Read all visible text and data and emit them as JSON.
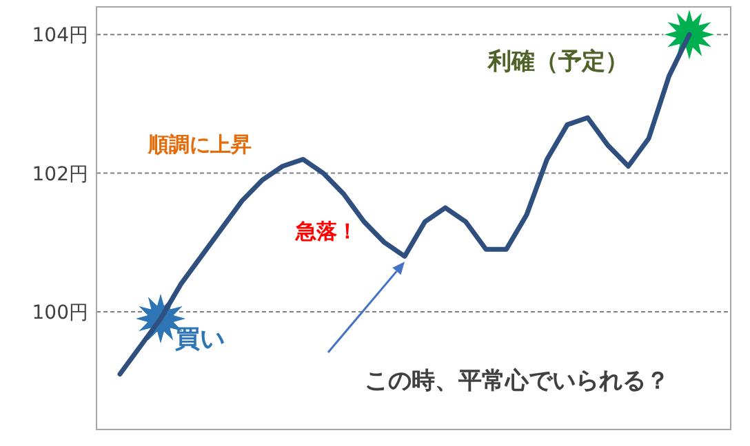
{
  "chart_data": {
    "type": "line",
    "categories": [
      null,
      null,
      null,
      null,
      null,
      null,
      null,
      null,
      null,
      null,
      null,
      null,
      null,
      null,
      null,
      null,
      null,
      null,
      null,
      null,
      null,
      null,
      null,
      null,
      null,
      null,
      null,
      null,
      null
    ],
    "series": [
      {
        "color": "#2f4f7f",
        "values": [
          99.1,
          99.5,
          99.9,
          100.4,
          100.8,
          101.2,
          101.6,
          101.9,
          102.1,
          102.2,
          102.0,
          101.7,
          101.3,
          101.0,
          100.8,
          101.3,
          101.5,
          101.3,
          100.9,
          100.9,
          101.4,
          102.2,
          102.7,
          102.8,
          102.4,
          102.1,
          102.5,
          103.4,
          104.0
        ]
      }
    ],
    "ylim": [
      98.3,
      104.4
    ],
    "yticks": [
      {
        "value": 100,
        "label": "100円"
      },
      {
        "value": 102,
        "label": "102円"
      },
      {
        "value": 104,
        "label": "104円"
      }
    ],
    "grid": "y",
    "marker": "none",
    "line_style": "solid",
    "tick_labels": "y",
    "annotations": [
      "順調に上昇",
      "急落！",
      "買い",
      "利確（予定）",
      "この時、平常心でいられる？"
    ]
  }
}
